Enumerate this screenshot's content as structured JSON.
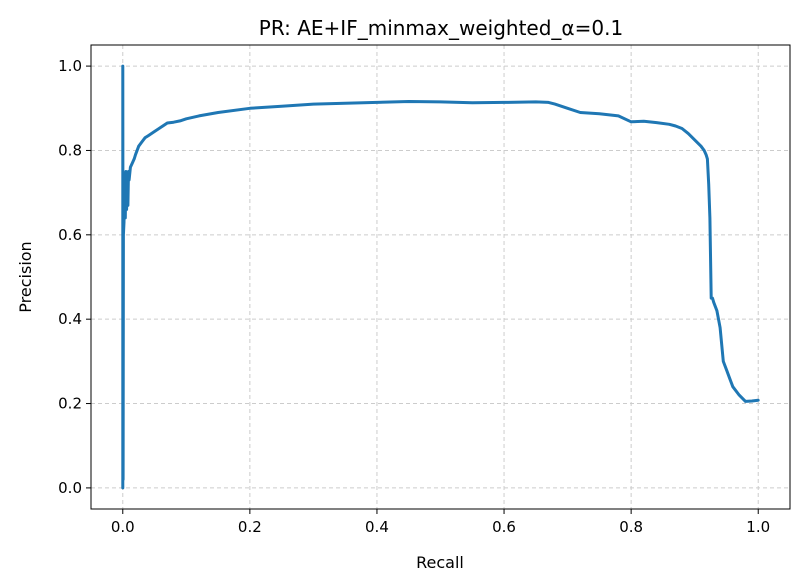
{
  "chart_data": {
    "type": "line",
    "title": "PR: AE+IF_minmax_weighted_α=0.1",
    "xlabel": "Recall",
    "ylabel": "Precision",
    "xlim": [
      -0.05,
      1.05
    ],
    "ylim": [
      -0.05,
      1.05
    ],
    "x_ticks": [
      0.0,
      0.2,
      0.4,
      0.6,
      0.8,
      1.0
    ],
    "y_ticks": [
      0.0,
      0.2,
      0.4,
      0.6,
      0.8,
      1.0
    ],
    "x_tick_labels": [
      "0.0",
      "0.2",
      "0.4",
      "0.6",
      "0.8",
      "1.0"
    ],
    "y_tick_labels": [
      "0.0",
      "0.2",
      "0.4",
      "0.6",
      "0.8",
      "1.0"
    ],
    "grid": true,
    "line_color": "#1f77b4",
    "series": [
      {
        "x": [
          0.0,
          0.0,
          0.0005,
          0.001,
          0.002,
          0.003,
          0.004,
          0.005,
          0.006,
          0.007,
          0.008,
          0.009,
          0.01,
          0.012,
          0.015,
          0.018,
          0.02,
          0.025,
          0.03,
          0.035,
          0.04,
          0.05,
          0.06,
          0.07,
          0.08,
          0.09,
          0.1,
          0.12,
          0.15,
          0.2,
          0.25,
          0.3,
          0.35,
          0.4,
          0.45,
          0.5,
          0.55,
          0.6,
          0.65,
          0.67,
          0.68,
          0.7,
          0.72,
          0.75,
          0.78,
          0.8,
          0.82,
          0.84,
          0.86,
          0.87,
          0.88,
          0.89,
          0.9,
          0.91,
          0.915,
          0.918,
          0.92,
          0.922,
          0.924,
          0.926,
          0.928,
          0.93,
          0.935,
          0.94,
          0.945,
          0.95,
          0.955,
          0.96,
          0.97,
          0.98,
          0.99,
          1.0
        ],
        "y": [
          0.0,
          1.0,
          0.02,
          0.6,
          0.63,
          0.72,
          0.64,
          0.75,
          0.66,
          0.74,
          0.67,
          0.75,
          0.73,
          0.76,
          0.77,
          0.78,
          0.79,
          0.81,
          0.82,
          0.83,
          0.835,
          0.845,
          0.855,
          0.865,
          0.867,
          0.87,
          0.875,
          0.882,
          0.89,
          0.9,
          0.905,
          0.91,
          0.912,
          0.914,
          0.916,
          0.915,
          0.913,
          0.914,
          0.915,
          0.914,
          0.91,
          0.9,
          0.89,
          0.887,
          0.882,
          0.868,
          0.869,
          0.866,
          0.862,
          0.858,
          0.852,
          0.84,
          0.825,
          0.81,
          0.8,
          0.79,
          0.78,
          0.72,
          0.64,
          0.45,
          0.45,
          0.44,
          0.42,
          0.38,
          0.3,
          0.28,
          0.26,
          0.24,
          0.22,
          0.205,
          0.206,
          0.208
        ]
      }
    ]
  }
}
